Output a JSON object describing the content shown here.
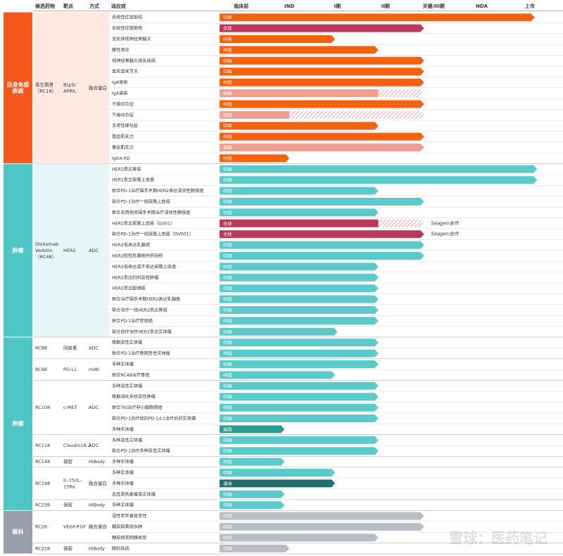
{
  "chart_data": {
    "type": "pipeline",
    "headers": [
      "候选药物",
      "靶点",
      "方式",
      "适应症"
    ],
    "stages": [
      "临床前",
      "IND",
      "I期",
      "II期",
      "关键/III期",
      "NDA",
      "上市"
    ],
    "xlim": [
      -0.45,
      6.25
    ],
    "watermark": "雪球：医药笔记",
    "sections": [
      {
        "area": [
          "自身免疫",
          "疾病"
        ],
        "color": "#f4581a",
        "tint": "#fde9e1",
        "bar_color": "#f5620f",
        "drugs": [
          {
            "name": [
              "泰它西普",
              "（RC18）"
            ],
            "target": [
              "BLyS/",
              "APRIL"
            ],
            "modality": [
              "融合蛋白"
            ],
            "rows": [
              {
                "indication": "系统性红斑狼疮",
                "region": "中国",
                "end": 6.1
              },
              {
                "indication": "系统性红斑狼疮",
                "region": "全球",
                "end": 3.8,
                "color": "#b8395b"
              },
              {
                "indication": "无抗体视神经脊髓炎",
                "region": "中国",
                "end": 1.95
              },
              {
                "indication": "膜性肾炎",
                "region": "中国",
                "end": 2.85
              },
              {
                "indication": "视神经脊髓炎谱系疾病",
                "region": "中国",
                "end": 3.8
              },
              {
                "indication": "类风湿关节炎",
                "region": "中国",
                "end": 3.8
              },
              {
                "indication": "IgA肾病",
                "region": "中国",
                "end": 3.8
              },
              {
                "indication": "IgA肾病",
                "region": "美国",
                "end": 2.85,
                "hatch_end": 3.8,
                "color": "#f0a090"
              },
              {
                "indication": "干燥综合征",
                "region": "中国",
                "end": 3.8
              },
              {
                "indication": "干燥综合征",
                "region": "美国",
                "end": 1.0,
                "hatch_end": 3.8,
                "color": "#f0a090"
              },
              {
                "indication": "多发性硬化症",
                "region": "中国",
                "end": 2.85
              },
              {
                "indication": "重症肌无力",
                "region": "中国",
                "end": 3.8
              },
              {
                "indication": "重症肌无力",
                "region": "美国",
                "end": 3.8,
                "color": "#f0a090"
              },
              {
                "indication": "IgG4-RD",
                "region": "中国",
                "end": 1.0
              }
            ]
          }
        ]
      },
      {
        "area": [
          "肿瘤"
        ],
        "color": "#4fc6c6",
        "tint": "#e6f6f6",
        "bar_color": "#5ccaca",
        "drugs": [
          {
            "name": [
              "Disitamab",
              "Vedotin",
              "（RC48）"
            ],
            "target": [
              "HER2"
            ],
            "modality": [
              "ADC"
            ],
            "rows": [
              {
                "indication": "HER2表达胃癌",
                "region": "中国",
                "end": 6.15
              },
              {
                "indication": "HER2表达尿路上皮癌",
                "region": "中国",
                "end": 6.15
              },
              {
                "indication": "联合PD-1治疗围手术期HER2表达浸润性膀胱癌",
                "region": "中国",
                "end": 2.85
              },
              {
                "indication": "联合PD-1治疗一线尿路上皮癌",
                "region": "中国",
                "end": 3.8
              },
              {
                "indication": "联合吉西他滨围手术期治疗浸润性膀胱癌",
                "region": "中国",
                "end": 2.85
              },
              {
                "indication": "HER2表达尿路上皮癌（G001）",
                "region": "全球",
                "end": 2.85,
                "hatch_end": 3.8,
                "color": "#b8395b",
                "note": "Seagen合作"
              },
              {
                "indication": "联合PD-1治疗一线尿路上皮癌（DV001）",
                "region": "全球",
                "end": 3.8,
                "color": "#b8395b",
                "note": "Seagen合作"
              },
              {
                "indication": "HER2低表达乳腺癌",
                "region": "中国",
                "end": 3.8
              },
              {
                "indication": "HER2阳性乳腺癌伴肝转移",
                "region": "中国",
                "end": 3.8
              },
              {
                "indication": "HER2低表达或不表达尿路上皮癌",
                "region": "中国",
                "end": 2.85
              },
              {
                "indication": "HER2表达妇科恶性肿瘤",
                "region": "中国",
                "end": 2.85
              },
              {
                "indication": "HER2表达胆道癌",
                "region": "中国",
                "end": 2.85
              },
              {
                "indication": "联合治疗围手术期HER2表达乳腺癌",
                "region": "中国",
                "end": 2.85
              },
              {
                "indication": "联合治疗一线HER2表达胃癌",
                "region": "中国",
                "end": 2.85
              },
              {
                "indication": "联合PD-1治疗宫颈癌",
                "region": "中国",
                "end": 2.85
              },
              {
                "indication": "联合放疗治疗HER2表达实体瘤",
                "region": "中国",
                "end": 2.0
              }
            ]
          }
        ]
      },
      {
        "area": [
          "肿瘤"
        ],
        "color": "#4fc6c6",
        "bar_color": "#5ccaca",
        "drugs": [
          {
            "name": [
              "RC88"
            ],
            "target": [
              "间皮素"
            ],
            "modality": [
              "ADC"
            ],
            "rows": [
              {
                "indication": "晚期恶性实体瘤",
                "region": "中国",
                "end": 2.85
              },
              {
                "indication": "联合PD-1治疗晚期恶性实体瘤",
                "region": "中国",
                "end": 2.85
              }
            ]
          },
          {
            "name": [
              "RC98"
            ],
            "target": [
              "PD-L1"
            ],
            "modality": [
              "mAb"
            ],
            "rows": [
              {
                "indication": "多种实体瘤",
                "region": "中国",
                "end": 2.85
              },
              {
                "indication": "联合RC48治疗胃癌",
                "region": "中国",
                "end": 1.95
              }
            ]
          },
          {
            "name": [
              "RC108"
            ],
            "target": [
              "c-MET"
            ],
            "modality": [
              "ADC"
            ],
            "rows": [
              {
                "indication": "多种恶性实体瘤",
                "region": "中国",
                "end": 2.85
              },
              {
                "indication": "晚期消化系统恶性肿瘤",
                "region": "中国",
                "end": 2.85
              },
              {
                "indication": "联合TKI治疗非小细胞肺癌",
                "region": "中国",
                "end": 2.85
              },
              {
                "indication": "联合PD-1治疗经抗PD-1/L1治疗后的实体瘤",
                "region": "中国",
                "end": 2.85
              },
              {
                "indication": "多种实体瘤",
                "region": "美国",
                "end": 0.9,
                "color": "#2a9d92"
              }
            ]
          },
          {
            "name": [
              "RC118"
            ],
            "target": [
              "Claudin18.2"
            ],
            "modality": [
              "ADC"
            ],
            "rows": [
              {
                "indication": "多种恶性实体瘤",
                "region": "中国",
                "end": 2.85
              },
              {
                "indication": "联合PD-1治疗多种恶性实体瘤",
                "region": "中国",
                "end": 2.85
              }
            ]
          },
          {
            "name": [
              "RC148"
            ],
            "target": [
              "保密"
            ],
            "modality": [
              "HiBody"
            ],
            "rows": [
              {
                "indication": "多种实体瘤",
                "region": "中国",
                "end": 0.9
              }
            ]
          },
          {
            "name": [
              "RC198"
            ],
            "target": [
              "IL-15/IL-",
              "15Rα"
            ],
            "modality": [
              "融合蛋白"
            ],
            "rows": [
              {
                "indication": "多种实体瘤",
                "region": "中国",
                "end": 1.95
              },
              {
                "indication": "多种实体瘤",
                "region": "澳洲",
                "end": 1.95,
                "color": "#236d6d"
              },
              {
                "indication": "恶性黑色素瘤等实体瘤",
                "region": "中国",
                "end": 0.9
              }
            ]
          },
          {
            "name": [
              "RC238"
            ],
            "target": [
              "保密"
            ],
            "modality": [
              "HiBody"
            ],
            "rows": [
              {
                "indication": "多种实体瘤",
                "region": "中国",
                "end": 0.9
              }
            ]
          }
        ]
      },
      {
        "area": [
          "眼科"
        ],
        "color": "#9aa0ab",
        "bar_color": "#b9bdc5",
        "drugs": [
          {
            "name": [
              "RC28"
            ],
            "target": [
              "VEGF/FGF"
            ],
            "modality": [
              "融合蛋白"
            ],
            "rows": [
              {
                "indication": "湿性老年黄斑变性",
                "region": "中国",
                "end": 3.8
              },
              {
                "indication": "糖尿病黄斑水肿",
                "region": "中国",
                "end": 3.8
              },
              {
                "indication": "糖尿病视网膜病变",
                "region": "中国",
                "end": 2.85
              }
            ]
          },
          {
            "name": [
              "RC218"
            ],
            "target": [
              "保密"
            ],
            "modality": [
              "HiBody"
            ],
            "rows": [
              {
                "indication": "眼科疾病",
                "region": "中国",
                "end": 1.0
              }
            ]
          }
        ]
      }
    ]
  }
}
